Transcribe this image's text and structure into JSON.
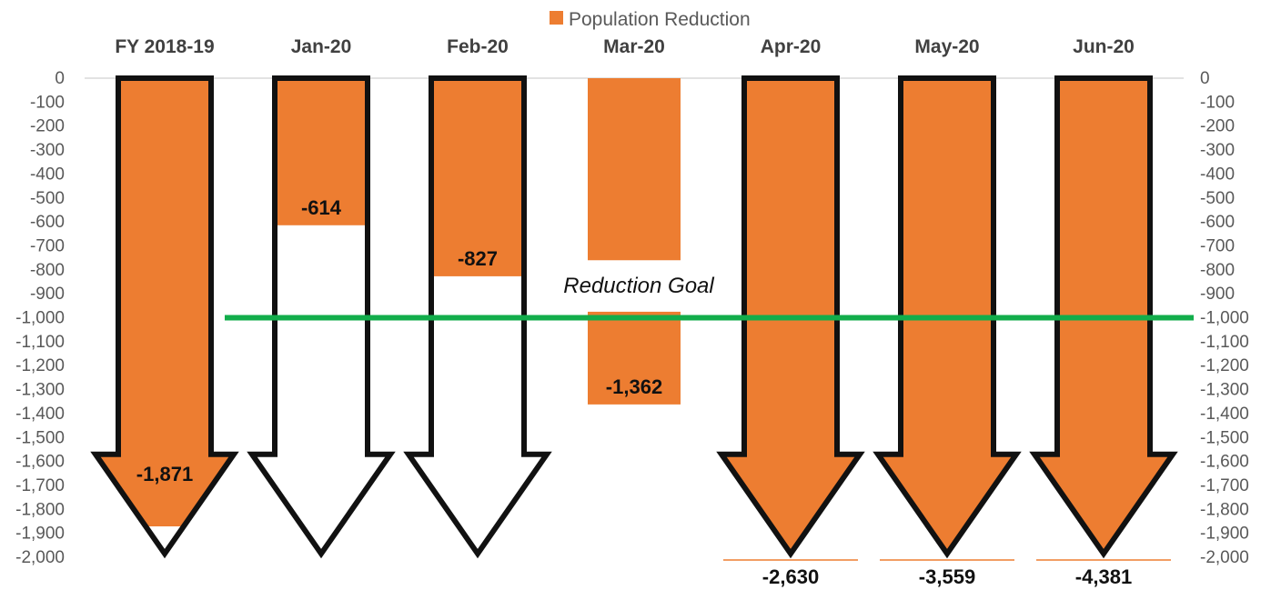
{
  "chart_data": {
    "type": "bar",
    "categories": [
      "FY 2018-19",
      "Jan-20",
      "Feb-20",
      "Mar-20",
      "Apr-20",
      "May-20",
      "Jun-20"
    ],
    "series": [
      {
        "name": "Population Reduction",
        "values": [
          -1871,
          -614,
          -827,
          -1362,
          -2630,
          -3559,
          -4381
        ],
        "labels": [
          "-1,871",
          "-614",
          "-827",
          "-1,362",
          "-2,630",
          "-3,559",
          "-4,381"
        ],
        "color": "#ED7D31"
      }
    ],
    "ylim": [
      -2000,
      0
    ],
    "y_tick_step": 100,
    "y_ticks_left": [
      "0",
      "-100",
      "-200",
      "-300",
      "-400",
      "-500",
      "-600",
      "-700",
      "-800",
      "-900",
      "-1,000",
      "-1,100",
      "-1,200",
      "-1,300",
      "-1,400",
      "-1,500",
      "-1,600",
      "-1,700",
      "-1,800",
      "-1,900",
      "-2,000"
    ],
    "y_ticks_right": [
      "0",
      "-100",
      "-200",
      "-300",
      "-400",
      "-500",
      "-600",
      "-700",
      "-800",
      "-900",
      "-1,000",
      "-1,100",
      "-1,200",
      "-1,300",
      "-1,400",
      "-1,500",
      "-1,600",
      "-1,700",
      "-1,800",
      "-1,900",
      "-2,000"
    ],
    "goal": {
      "value": -1000,
      "label": "Reduction Goal",
      "color": "#12AD4B"
    },
    "legend": {
      "position": "top-center",
      "label": "Population Reduction"
    },
    "x_axis_position": "top",
    "arrow_outline_color": "#111111"
  }
}
